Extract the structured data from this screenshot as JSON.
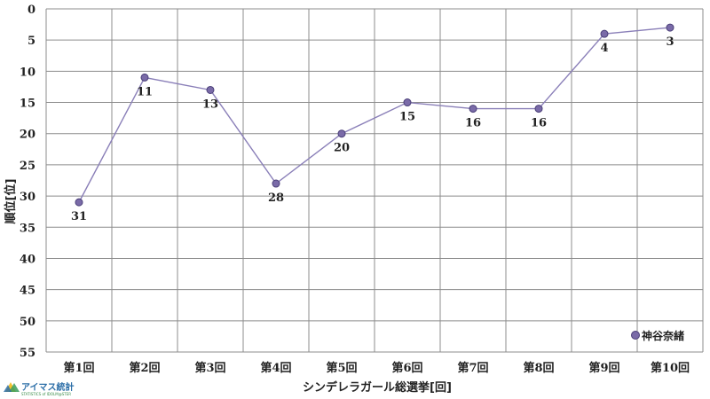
{
  "chart_data": {
    "type": "line",
    "categories": [
      "第1回",
      "第2回",
      "第3回",
      "第4回",
      "第5回",
      "第6回",
      "第7回",
      "第8回",
      "第9回",
      "第10回"
    ],
    "series": [
      {
        "name": "神谷奈緒",
        "values": [
          31,
          11,
          13,
          28,
          20,
          15,
          16,
          16,
          4,
          3
        ]
      }
    ],
    "data_labels": [
      "31",
      "11",
      "13",
      "28",
      "20",
      "15",
      "16",
      "16",
      "4",
      "3"
    ],
    "xlabel": "シンデレラガール総選挙[回]",
    "ylabel": "順位[位]",
    "ylim": [
      0,
      55
    ],
    "y_inverted": true,
    "yticks": [
      "0",
      "5",
      "10",
      "15",
      "20",
      "25",
      "30",
      "35",
      "40",
      "45",
      "50",
      "55"
    ],
    "grid": true,
    "legend_position": "bottom-right",
    "colors": {
      "line": "#8a7fb8",
      "marker_fill": "#7a6ba8",
      "marker_stroke": "#4a3f78",
      "grid": "#8c8c8c"
    }
  },
  "logo": {
    "text": "アイマス統計",
    "subtext": "STATISTICS of IDOLM@STER"
  }
}
